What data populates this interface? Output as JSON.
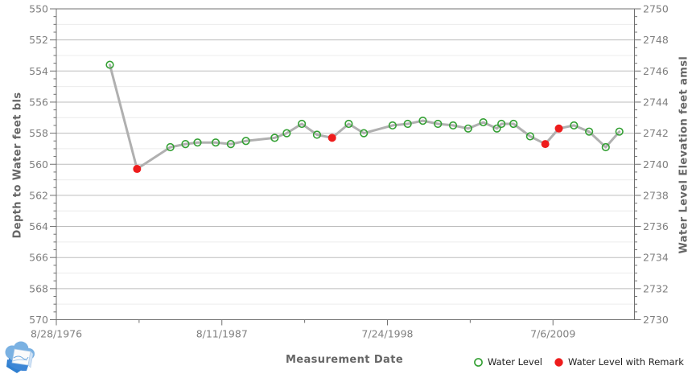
{
  "chart_data": {
    "type": "line",
    "title": "",
    "xlabel": "Measurement Date",
    "y_axis_left": {
      "label": "Depth to Water feet bls",
      "ticks": [
        550,
        552,
        554,
        556,
        558,
        560,
        562,
        564,
        566,
        568,
        570
      ],
      "range": [
        550,
        570
      ],
      "minor_step": 0.5,
      "direction": "increasing downward"
    },
    "y_axis_right": {
      "label": "Water Level Elevation feet amsl",
      "ticks": [
        2750,
        2748,
        2746,
        2744,
        2742,
        2740,
        2738,
        2736,
        2734,
        2732,
        2730
      ],
      "range": [
        2750,
        2730
      ],
      "relation": "elevation = 3300 - depth"
    },
    "x_axis": {
      "tick_labels": [
        "8/28/1976",
        "8/11/1987",
        "7/24/1998",
        "7/6/2009"
      ],
      "tick_years": [
        1976.66,
        1987.61,
        1998.56,
        2009.51
      ],
      "range_years": [
        1976.66,
        2014.9
      ]
    },
    "legend": [
      {
        "label": "Water Level",
        "marker": "open-circle",
        "color": "#33a033"
      },
      {
        "label": "Water Level with Remark",
        "marker": "filled-circle",
        "color": "#ee1c1c"
      }
    ],
    "grid": {
      "major_color": "#bdbdbd",
      "minor_color": "#ececec",
      "axis_color": "#707070",
      "tick_label_color": "#7f7f7f"
    },
    "series": [
      {
        "name": "Water Level",
        "line_color": "#b0b0b0",
        "points": [
          {
            "year": 1980.2,
            "depth": 553.6,
            "remark": false
          },
          {
            "year": 1982.0,
            "depth": 560.3,
            "remark": true
          },
          {
            "year": 1984.2,
            "depth": 558.9,
            "remark": false
          },
          {
            "year": 1985.2,
            "depth": 558.7,
            "remark": false
          },
          {
            "year": 1986.0,
            "depth": 558.6,
            "remark": false
          },
          {
            "year": 1987.2,
            "depth": 558.6,
            "remark": false
          },
          {
            "year": 1988.2,
            "depth": 558.7,
            "remark": false
          },
          {
            "year": 1989.2,
            "depth": 558.5,
            "remark": false
          },
          {
            "year": 1991.1,
            "depth": 558.3,
            "remark": false
          },
          {
            "year": 1991.9,
            "depth": 558.0,
            "remark": false
          },
          {
            "year": 1992.9,
            "depth": 557.4,
            "remark": false
          },
          {
            "year": 1993.9,
            "depth": 558.1,
            "remark": false
          },
          {
            "year": 1994.9,
            "depth": 558.3,
            "remark": true
          },
          {
            "year": 1996.0,
            "depth": 557.4,
            "remark": false
          },
          {
            "year": 1997.0,
            "depth": 558.0,
            "remark": false
          },
          {
            "year": 1998.9,
            "depth": 557.5,
            "remark": false
          },
          {
            "year": 1999.9,
            "depth": 557.4,
            "remark": false
          },
          {
            "year": 2000.9,
            "depth": 557.2,
            "remark": false
          },
          {
            "year": 2001.9,
            "depth": 557.4,
            "remark": false
          },
          {
            "year": 2002.9,
            "depth": 557.5,
            "remark": false
          },
          {
            "year": 2003.9,
            "depth": 557.7,
            "remark": false
          },
          {
            "year": 2004.9,
            "depth": 557.3,
            "remark": false
          },
          {
            "year": 2005.8,
            "depth": 557.7,
            "remark": false
          },
          {
            "year": 2006.1,
            "depth": 557.4,
            "remark": false
          },
          {
            "year": 2006.9,
            "depth": 557.4,
            "remark": false
          },
          {
            "year": 2008.0,
            "depth": 558.2,
            "remark": false
          },
          {
            "year": 2009.0,
            "depth": 558.7,
            "remark": true
          },
          {
            "year": 2009.9,
            "depth": 557.7,
            "remark": true
          },
          {
            "year": 2010.9,
            "depth": 557.5,
            "remark": false
          },
          {
            "year": 2011.9,
            "depth": 557.9,
            "remark": false
          },
          {
            "year": 2013.0,
            "depth": 558.9,
            "remark": false
          },
          {
            "year": 2013.9,
            "depth": 557.9,
            "remark": false
          }
        ]
      }
    ]
  },
  "logo": {
    "name": "blue cloud map logo"
  }
}
